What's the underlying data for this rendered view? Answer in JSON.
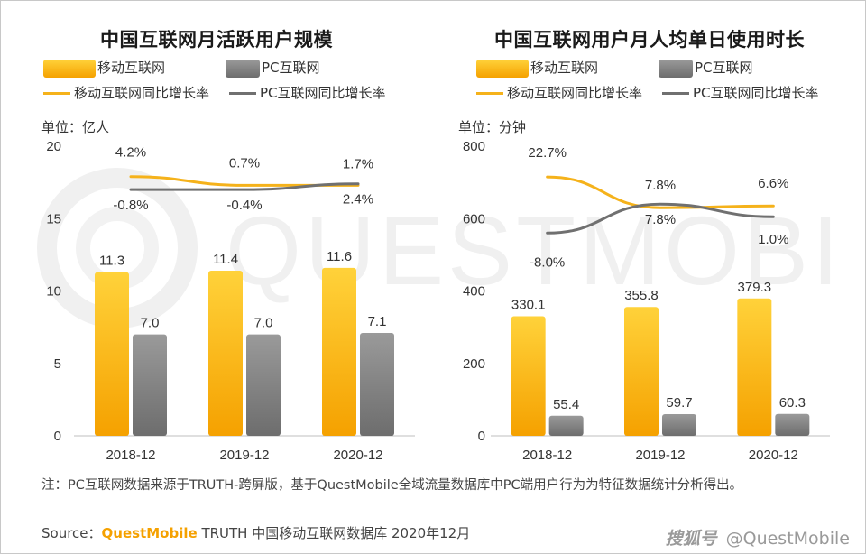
{
  "colors": {
    "mobile_bar_top": "#ffd23a",
    "mobile_bar_bottom": "#f5a100",
    "pc_bar_top": "#9a9a9a",
    "pc_bar_bottom": "#6d6d6d",
    "mobile_line": "#f5b21b",
    "pc_line": "#707070",
    "axis": "#bfbfbf",
    "text": "#333333",
    "brand": "#f5a100"
  },
  "legend": {
    "mobile": "移动互联网",
    "pc": "PC互联网",
    "mobile_rate": "移动互联网同比增长率",
    "pc_rate": "PC互联网同比增长率"
  },
  "watermark": "QUESTMOBILE",
  "chart_data": [
    {
      "type": "bar",
      "title": "中国互联网月活跃用户规模",
      "unit_label": "单位：亿人",
      "categories": [
        "2018-12",
        "2019-12",
        "2020-12"
      ],
      "ylim": [
        0,
        20
      ],
      "yticks": [
        0,
        5,
        10,
        15,
        20
      ],
      "series": [
        {
          "name": "移动互联网",
          "kind": "bar",
          "values": [
            11.3,
            11.4,
            11.6
          ],
          "labels": [
            "11.3",
            "11.4",
            "11.6"
          ]
        },
        {
          "name": "PC互联网",
          "kind": "bar",
          "values": [
            7.0,
            7.0,
            7.1
          ],
          "labels": [
            "7.0",
            "7.0",
            "7.1"
          ]
        }
      ],
      "rate_series": [
        {
          "name": "移动互联网同比增长率",
          "kind": "line",
          "values": [
            4.2,
            0.7,
            1.7
          ],
          "labels": [
            "4.2%",
            "0.7%",
            "1.7%"
          ],
          "plot_y": [
            17.9,
            17.3,
            17.3
          ]
        },
        {
          "name": "PC互联网同比增长率",
          "kind": "line",
          "values": [
            -0.8,
            -0.4,
            2.4
          ],
          "labels": [
            "-0.8%",
            "-0.4%",
            "2.4%"
          ],
          "plot_y": [
            17.0,
            17.0,
            17.4
          ]
        }
      ]
    },
    {
      "type": "bar",
      "title": "中国互联网用户月人均单日使用时长",
      "unit_label": "单位：分钟",
      "categories": [
        "2018-12",
        "2019-12",
        "2020-12"
      ],
      "ylim": [
        0,
        800
      ],
      "yticks": [
        0,
        200,
        400,
        600,
        800
      ],
      "series": [
        {
          "name": "移动互联网",
          "kind": "bar",
          "values": [
            330.1,
            355.8,
            379.3
          ],
          "labels": [
            "330.1",
            "355.8",
            "379.3"
          ]
        },
        {
          "name": "PC互联网",
          "kind": "bar",
          "values": [
            55.4,
            59.7,
            60.3
          ],
          "labels": [
            "55.4",
            "59.7",
            "60.3"
          ]
        }
      ],
      "rate_series": [
        {
          "name": "移动互联网同比增长率",
          "kind": "line",
          "values": [
            22.7,
            7.8,
            6.6
          ],
          "labels": [
            "22.7%",
            "7.8%",
            "6.6%"
          ],
          "plot_y": [
            715,
            630,
            635
          ]
        },
        {
          "name": "PC互联网同比增长率",
          "kind": "line",
          "values": [
            -8.0,
            7.8,
            1.0
          ],
          "labels": [
            "-8.0%",
            "7.8%",
            "1.0%"
          ],
          "plot_y": [
            560,
            640,
            605
          ]
        }
      ]
    }
  ],
  "footer": {
    "note": "注：PC互联网数据来源于TRUTH-跨屏版，基于QuestMobile全域流量数据库中PC端用户行为为特征数据统计分析得出。",
    "source_prefix": "Source：",
    "source_brand": "QuestMobile",
    "source_rest": "TRUTH 中国移动互联网数据库 2020年12月",
    "credit_platform": "搜狐号",
    "credit_handle": "@QuestMobile"
  }
}
